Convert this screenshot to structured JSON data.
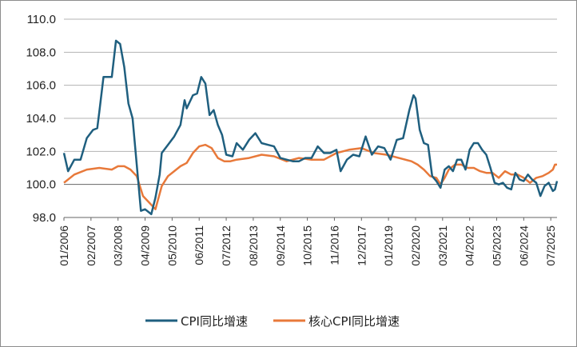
{
  "chart_data": {
    "type": "line",
    "title": "",
    "xlabel": "",
    "ylabel": "",
    "ylim": [
      98.0,
      110.0
    ],
    "y_ticks": [
      "98.0",
      "100.0",
      "102.0",
      "104.0",
      "106.0",
      "108.0",
      "110.0"
    ],
    "x_ticks": [
      "01/2006",
      "02/2007",
      "03/2008",
      "04/2009",
      "05/2010",
      "06/2011",
      "07/2012",
      "08/2013",
      "09/2014",
      "10/2015",
      "11/2016",
      "12/2017",
      "01/2019",
      "02/2020",
      "03/2021",
      "04/2022",
      "05/2023",
      "06/2024",
      "07/2025"
    ],
    "x_range": [
      "2006-01",
      "2025-10"
    ],
    "baseline": 100.0,
    "grid": "horizontal",
    "legend_position": "bottom-center",
    "series": [
      {
        "name": "CPI同比增速",
        "color": "#1f5f7f",
        "points": [
          [
            "2006-01",
            101.9
          ],
          [
            "2006-03",
            100.8
          ],
          [
            "2006-06",
            101.5
          ],
          [
            "2006-09",
            101.5
          ],
          [
            "2006-12",
            102.8
          ],
          [
            "2007-03",
            103.3
          ],
          [
            "2007-05",
            103.4
          ],
          [
            "2007-06",
            104.4
          ],
          [
            "2007-08",
            106.5
          ],
          [
            "2007-10",
            106.5
          ],
          [
            "2007-12",
            106.5
          ],
          [
            "2008-02",
            108.7
          ],
          [
            "2008-04",
            108.5
          ],
          [
            "2008-06",
            107.1
          ],
          [
            "2008-08",
            104.9
          ],
          [
            "2008-10",
            104.0
          ],
          [
            "2008-12",
            101.2
          ],
          [
            "2009-02",
            98.4
          ],
          [
            "2009-04",
            98.5
          ],
          [
            "2009-07",
            98.2
          ],
          [
            "2009-09",
            99.2
          ],
          [
            "2009-11",
            100.6
          ],
          [
            "2009-12",
            101.9
          ],
          [
            "2010-03",
            102.4
          ],
          [
            "2010-06",
            102.9
          ],
          [
            "2010-09",
            103.6
          ],
          [
            "2010-11",
            105.1
          ],
          [
            "2010-12",
            104.6
          ],
          [
            "2011-03",
            105.4
          ],
          [
            "2011-05",
            105.5
          ],
          [
            "2011-07",
            106.5
          ],
          [
            "2011-09",
            106.1
          ],
          [
            "2011-11",
            104.2
          ],
          [
            "2012-01",
            104.5
          ],
          [
            "2012-03",
            103.6
          ],
          [
            "2012-05",
            103.0
          ],
          [
            "2012-07",
            101.8
          ],
          [
            "2012-10",
            101.7
          ],
          [
            "2012-12",
            102.5
          ],
          [
            "2013-03",
            102.1
          ],
          [
            "2013-06",
            102.7
          ],
          [
            "2013-09",
            103.1
          ],
          [
            "2013-12",
            102.5
          ],
          [
            "2014-03",
            102.4
          ],
          [
            "2014-06",
            102.3
          ],
          [
            "2014-09",
            101.6
          ],
          [
            "2014-12",
            101.5
          ],
          [
            "2015-03",
            101.4
          ],
          [
            "2015-06",
            101.4
          ],
          [
            "2015-09",
            101.6
          ],
          [
            "2015-12",
            101.6
          ],
          [
            "2016-03",
            102.3
          ],
          [
            "2016-06",
            101.9
          ],
          [
            "2016-09",
            101.9
          ],
          [
            "2016-12",
            102.1
          ],
          [
            "2017-02",
            100.8
          ],
          [
            "2017-05",
            101.5
          ],
          [
            "2017-08",
            101.8
          ],
          [
            "2017-11",
            101.7
          ],
          [
            "2018-02",
            102.9
          ],
          [
            "2018-05",
            101.8
          ],
          [
            "2018-08",
            102.3
          ],
          [
            "2018-11",
            102.2
          ],
          [
            "2019-02",
            101.5
          ],
          [
            "2019-05",
            102.7
          ],
          [
            "2019-08",
            102.8
          ],
          [
            "2019-11",
            104.5
          ],
          [
            "2020-01",
            105.4
          ],
          [
            "2020-02",
            105.2
          ],
          [
            "2020-04",
            103.3
          ],
          [
            "2020-06",
            102.5
          ],
          [
            "2020-08",
            102.4
          ],
          [
            "2020-10",
            100.5
          ],
          [
            "2020-12",
            100.2
          ],
          [
            "2021-02",
            99.8
          ],
          [
            "2021-04",
            100.9
          ],
          [
            "2021-06",
            101.1
          ],
          [
            "2021-08",
            100.8
          ],
          [
            "2021-10",
            101.5
          ],
          [
            "2021-12",
            101.5
          ],
          [
            "2022-02",
            100.9
          ],
          [
            "2022-04",
            102.1
          ],
          [
            "2022-06",
            102.5
          ],
          [
            "2022-08",
            102.5
          ],
          [
            "2022-10",
            102.1
          ],
          [
            "2022-12",
            101.8
          ],
          [
            "2023-02",
            101.0
          ],
          [
            "2023-04",
            100.1
          ],
          [
            "2023-06",
            100.0
          ],
          [
            "2023-08",
            100.1
          ],
          [
            "2023-10",
            99.8
          ],
          [
            "2023-12",
            99.7
          ],
          [
            "2024-02",
            100.7
          ],
          [
            "2024-04",
            100.3
          ],
          [
            "2024-06",
            100.2
          ],
          [
            "2024-08",
            100.6
          ],
          [
            "2024-10",
            100.3
          ],
          [
            "2024-12",
            100.1
          ],
          [
            "2025-02",
            99.3
          ],
          [
            "2025-04",
            99.9
          ],
          [
            "2025-06",
            100.1
          ],
          [
            "2025-08",
            99.6
          ],
          [
            "2025-09",
            99.7
          ],
          [
            "2025-10",
            100.2
          ]
        ]
      },
      {
        "name": "核心CPI同比增速",
        "color": "#e8793a",
        "points": [
          [
            "2006-01",
            100.1
          ],
          [
            "2006-06",
            100.6
          ],
          [
            "2006-12",
            100.9
          ],
          [
            "2007-06",
            101.0
          ],
          [
            "2007-12",
            100.9
          ],
          [
            "2008-03",
            101.1
          ],
          [
            "2008-06",
            101.1
          ],
          [
            "2008-09",
            100.9
          ],
          [
            "2008-12",
            100.5
          ],
          [
            "2009-03",
            99.3
          ],
          [
            "2009-06",
            98.9
          ],
          [
            "2009-09",
            98.5
          ],
          [
            "2009-12",
            99.9
          ],
          [
            "2010-03",
            100.5
          ],
          [
            "2010-06",
            100.8
          ],
          [
            "2010-09",
            101.1
          ],
          [
            "2010-12",
            101.3
          ],
          [
            "2011-03",
            101.9
          ],
          [
            "2011-06",
            102.3
          ],
          [
            "2011-09",
            102.4
          ],
          [
            "2011-12",
            102.2
          ],
          [
            "2012-03",
            101.6
          ],
          [
            "2012-06",
            101.4
          ],
          [
            "2012-09",
            101.4
          ],
          [
            "2012-12",
            101.5
          ],
          [
            "2013-06",
            101.6
          ],
          [
            "2013-12",
            101.8
          ],
          [
            "2014-06",
            101.7
          ],
          [
            "2014-12",
            101.4
          ],
          [
            "2015-06",
            101.6
          ],
          [
            "2015-12",
            101.5
          ],
          [
            "2016-06",
            101.5
          ],
          [
            "2016-12",
            101.9
          ],
          [
            "2017-06",
            102.1
          ],
          [
            "2017-12",
            102.2
          ],
          [
            "2018-06",
            101.9
          ],
          [
            "2018-12",
            101.8
          ],
          [
            "2019-06",
            101.6
          ],
          [
            "2019-12",
            101.4
          ],
          [
            "2020-03",
            101.2
          ],
          [
            "2020-06",
            100.9
          ],
          [
            "2020-09",
            100.5
          ],
          [
            "2020-12",
            100.4
          ],
          [
            "2021-02",
            100.0
          ],
          [
            "2021-04",
            100.4
          ],
          [
            "2021-06",
            100.9
          ],
          [
            "2021-09",
            101.2
          ],
          [
            "2021-12",
            101.2
          ],
          [
            "2022-03",
            101.0
          ],
          [
            "2022-06",
            101.0
          ],
          [
            "2022-09",
            100.8
          ],
          [
            "2022-12",
            100.7
          ],
          [
            "2023-03",
            100.7
          ],
          [
            "2023-06",
            100.4
          ],
          [
            "2023-09",
            100.8
          ],
          [
            "2023-12",
            100.6
          ],
          [
            "2024-03",
            100.6
          ],
          [
            "2024-06",
            100.4
          ],
          [
            "2024-09",
            100.1
          ],
          [
            "2024-12",
            100.4
          ],
          [
            "2025-03",
            100.5
          ],
          [
            "2025-06",
            100.7
          ],
          [
            "2025-08",
            100.9
          ],
          [
            "2025-09",
            101.2
          ],
          [
            "2025-10",
            101.2
          ]
        ]
      }
    ]
  }
}
